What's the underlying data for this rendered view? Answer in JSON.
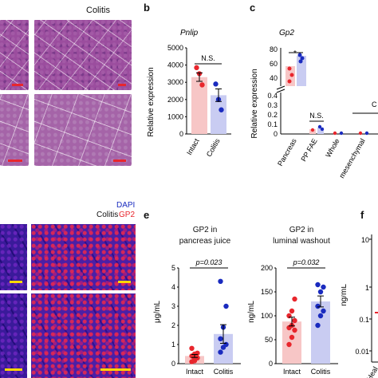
{
  "panel_a": {
    "title": "Colitis"
  },
  "panel_b": {
    "letter": "b",
    "gene": "Pnlip",
    "ylabel": "Relative expression",
    "sig": "N.S.",
    "ticks": [
      "0",
      "1000",
      "2000",
      "3000",
      "4000",
      "5000"
    ],
    "categories": [
      "Intact",
      "Colitis"
    ]
  },
  "panel_c": {
    "letter": "c",
    "gene": "Gp2",
    "ylabel": "Relative expression",
    "sig_top": "*",
    "sig_mid": "N.S.",
    "ticks_top": [
      "40",
      "60",
      "80"
    ],
    "ticks_bottom": [
      "0",
      "0.1",
      "0.2",
      "0.3",
      "0.4"
    ],
    "categories": [
      "Pancreas",
      "PP FAE",
      "Whole",
      "mesenchymal"
    ],
    "cut_label": "C"
  },
  "panel_d": {
    "title": "Colitis",
    "legend_dapi": "DAPI",
    "legend_gp2": "GP2"
  },
  "panel_e": {
    "letter": "e",
    "left": {
      "title_line1": "GP2 in",
      "title_line2": "pancreas juice",
      "pvalue": "p=0.023",
      "ylabel": "μg/mL",
      "ticks": [
        "0",
        "1",
        "2",
        "3",
        "4",
        "5"
      ],
      "categories": [
        "Intact",
        "Colitis"
      ]
    },
    "right": {
      "title_line1": "GP2 in",
      "title_line2": "luminal washout",
      "pvalue": "p=0.032",
      "ylabel": "ng/mL",
      "ticks": [
        "0",
        "50",
        "100",
        "150",
        "200"
      ],
      "categories": [
        "Intact",
        "Colitis"
      ]
    }
  },
  "panel_f": {
    "letter": "f",
    "ylabel": "ng/mL",
    "ticks": [
      "0.01",
      "0.1",
      "1",
      "10"
    ],
    "category": "Heal"
  },
  "colors": {
    "intact_bar": "#f7c6c6",
    "intact_dot": "#e8262d",
    "colitis_bar": "#c9ccf2",
    "colitis_dot": "#1a2bbf"
  },
  "chart_data": [
    {
      "type": "bar",
      "title": "Pnlip",
      "ylabel": "Relative expression",
      "ylim": [
        0,
        5000
      ],
      "categories": [
        "Intact",
        "Colitis"
      ],
      "values": [
        3300,
        2250
      ],
      "points": [
        [
          3850,
          3500,
          2850
        ],
        [
          2900,
          2000,
          1400
        ]
      ]
    },
    {
      "type": "bar",
      "title": "Gp2",
      "ylabel": "Relative expression",
      "categories": [
        "Pancreas",
        "PP FAE",
        "Whole",
        "mesenchymal"
      ],
      "series": [
        {
          "values": [
            48,
            0.02,
            0.005,
            0.005
          ]
        },
        {
          "values": [
            60,
            0.03,
            0.005,
            0.005
          ]
        }
      ]
    },
    {
      "type": "bar",
      "title": "GP2 in pancreas juice",
      "ylabel": "μg/mL",
      "ylim": [
        0,
        5
      ],
      "categories": [
        "Intact",
        "Colitis"
      ],
      "values": [
        0.4,
        1.55
      ],
      "points": [
        [
          0.1,
          0.25,
          0.3,
          0.4,
          0.5,
          0.55,
          0.8,
          0.15
        ],
        [
          0.6,
          0.85,
          1.0,
          1.3,
          1.9,
          3.0,
          4.3
        ]
      ]
    },
    {
      "type": "bar",
      "title": "GP2 in luminal washout",
      "ylabel": "ng/mL",
      "ylim": [
        0,
        200
      ],
      "categories": [
        "Intact",
        "Colitis"
      ],
      "values": [
        88,
        130
      ],
      "points": [
        [
          40,
          55,
          70,
          75,
          80,
          90,
          100,
          110,
          135
        ],
        [
          80,
          100,
          110,
          120,
          150,
          160,
          165
        ]
      ]
    }
  ]
}
